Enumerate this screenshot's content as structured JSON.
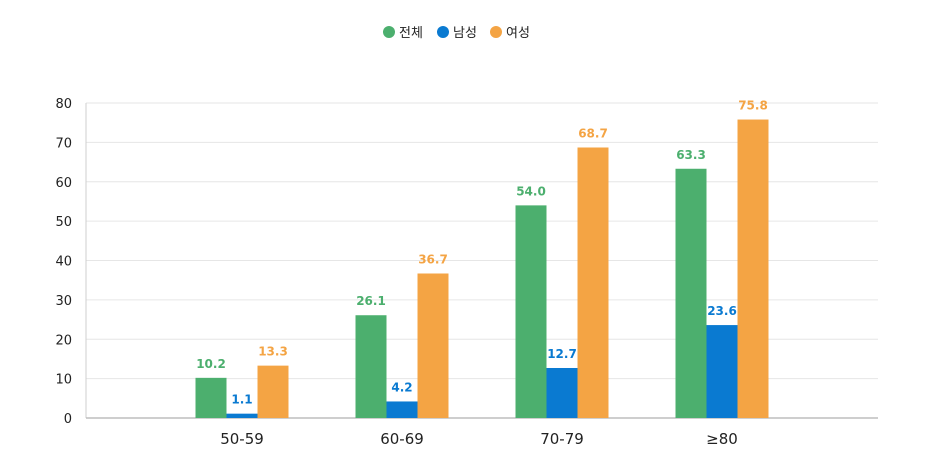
{
  "chart_data": {
    "type": "bar",
    "categories": [
      "50-59",
      "60-69",
      "70-79",
      "≥80"
    ],
    "series": [
      {
        "name": "전체",
        "color": "#4caf6e",
        "values": [
          10.2,
          26.1,
          54.0,
          63.3
        ],
        "labels": [
          "10.2",
          "26.1",
          "54.0",
          "63.3"
        ]
      },
      {
        "name": "남성",
        "color": "#0a7ad1",
        "values": [
          1.1,
          4.2,
          12.7,
          23.6
        ],
        "labels": [
          "1.1",
          "4.2",
          "12.7",
          "23.6"
        ]
      },
      {
        "name": "여성",
        "color": "#f4a444",
        "values": [
          13.3,
          36.7,
          68.7,
          75.8
        ],
        "labels": [
          "13.3",
          "36.7",
          "68.7",
          "75.8"
        ]
      }
    ],
    "ylim": [
      0,
      80
    ],
    "yticks": [
      "0",
      "10",
      "20",
      "30",
      "40",
      "50",
      "60",
      "70",
      "80"
    ],
    "grid": true,
    "legend_position": "top-center"
  }
}
